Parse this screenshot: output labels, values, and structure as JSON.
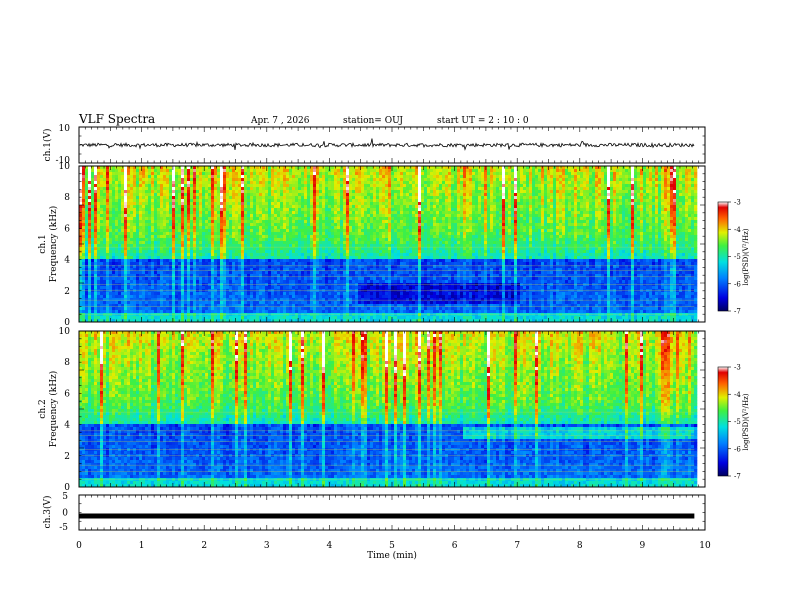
{
  "header": {
    "title": "VLF Spectra",
    "date": "Apr. 7 , 2026",
    "station": "station= OUJ",
    "start_ut": "start UT = 2 : 10 : 0"
  },
  "chart_data": [
    {
      "type": "line",
      "name": "ch1-waveform",
      "ylabel": "ch.1(V)",
      "ylim": [
        -10,
        10
      ],
      "yticks": [
        "10",
        "-10"
      ],
      "level": 0,
      "noise_amplitude": 1
    },
    {
      "type": "heatmap",
      "name": "ch1-spectrogram",
      "ylabel": "ch.1\nFrequency (kHz)",
      "ylim": [
        0,
        10
      ],
      "yticks": [
        "0",
        "2",
        "4",
        "6",
        "8",
        "10"
      ],
      "colorbar": {
        "label": "log(PSD)(V²/Hz)",
        "range": [
          -7,
          -3
        ],
        "ticks": [
          "-3",
          "-4",
          "-5",
          "-6",
          "-7"
        ]
      }
    },
    {
      "type": "heatmap",
      "name": "ch2-spectrogram",
      "ylabel": "ch.2\nFrequency (kHz)",
      "ylim": [
        0,
        10
      ],
      "yticks": [
        "0",
        "2",
        "4",
        "6",
        "8",
        "10"
      ],
      "colorbar": {
        "label": "log(PSD)(V²/Hz)",
        "range": [
          -7,
          -3
        ],
        "ticks": [
          "-3",
          "-4",
          "-5",
          "-6",
          "-7"
        ]
      }
    },
    {
      "type": "line",
      "name": "ch3-voltage",
      "ylabel": "ch.3(V)",
      "ylim": [
        -5,
        5
      ],
      "yticks": [
        "5",
        "0",
        "-5"
      ],
      "level": -1
    }
  ],
  "xaxis": {
    "label": "Time (min)",
    "xlim": [
      0,
      10
    ],
    "ticks": [
      "0",
      "1",
      "2",
      "3",
      "4",
      "5",
      "6",
      "7",
      "8",
      "9",
      "10"
    ],
    "data_end": 9.83
  }
}
